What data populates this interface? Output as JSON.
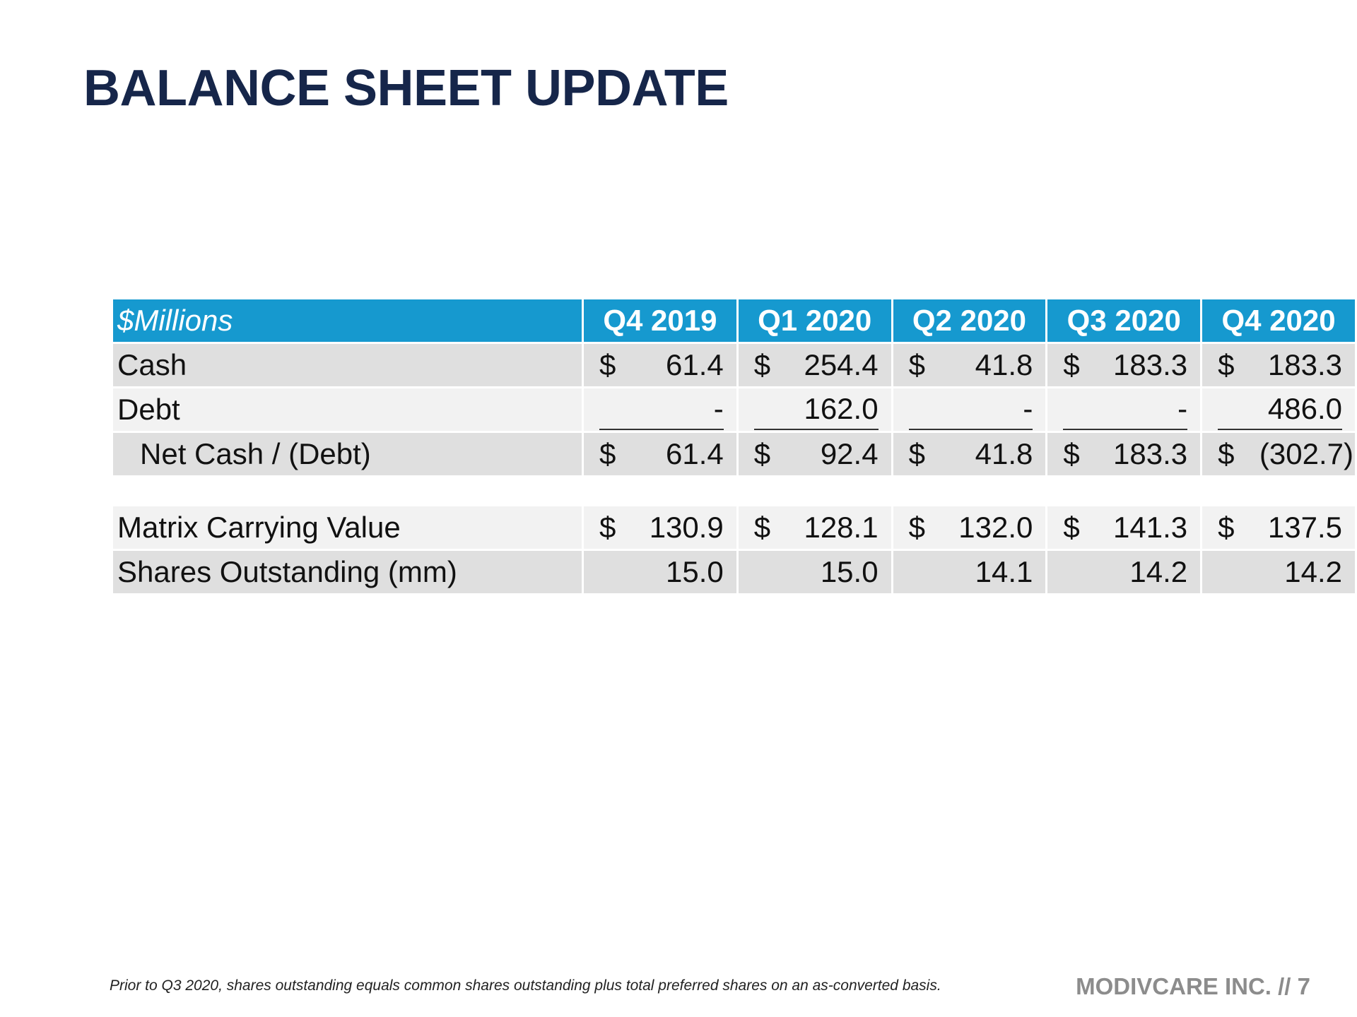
{
  "title": "BALANCE SHEET UPDATE",
  "table": {
    "header_label": "$Millions",
    "columns": [
      "Q4 2019",
      "Q1 2020",
      "Q2 2020",
      "Q3 2020",
      "Q4 2020"
    ],
    "rows": [
      {
        "label": "Cash",
        "cells": [
          {
            "cur": "$",
            "val": "61.4"
          },
          {
            "cur": "$",
            "val": "254.4"
          },
          {
            "cur": "$",
            "val": "41.8"
          },
          {
            "cur": "$",
            "val": "183.3"
          },
          {
            "cur": "$",
            "val": "183.3"
          }
        ]
      },
      {
        "label": "Debt",
        "cells": [
          {
            "cur": "",
            "val": "-"
          },
          {
            "cur": "",
            "val": "162.0"
          },
          {
            "cur": "",
            "val": "-"
          },
          {
            "cur": "",
            "val": "-"
          },
          {
            "cur": "",
            "val": "486.0"
          }
        ]
      },
      {
        "label": "Net Cash / (Debt)",
        "cells": [
          {
            "cur": "$",
            "val": "61.4"
          },
          {
            "cur": "$",
            "val": "92.4"
          },
          {
            "cur": "$",
            "val": "41.8"
          },
          {
            "cur": "$",
            "val": "183.3"
          },
          {
            "cur": "$",
            "val": "(302.7)"
          }
        ]
      },
      {
        "label": "Matrix Carrying Value",
        "cells": [
          {
            "cur": "$",
            "val": "130.9"
          },
          {
            "cur": "$",
            "val": "128.1"
          },
          {
            "cur": "$",
            "val": "132.0"
          },
          {
            "cur": "$",
            "val": "141.3"
          },
          {
            "cur": "$",
            "val": "137.5"
          }
        ]
      },
      {
        "label": "Shares Outstanding (mm)",
        "cells": [
          {
            "cur": "",
            "val": "15.0"
          },
          {
            "cur": "",
            "val": "15.0"
          },
          {
            "cur": "",
            "val": "14.1"
          },
          {
            "cur": "",
            "val": "14.2"
          },
          {
            "cur": "",
            "val": "14.2"
          }
        ]
      }
    ]
  },
  "footnote": "Prior to Q3 2020, shares outstanding equals common shares outstanding plus total preferred shares on an as-converted basis.",
  "footer": {
    "brand": "MODIVCARE INC. // 7"
  }
}
